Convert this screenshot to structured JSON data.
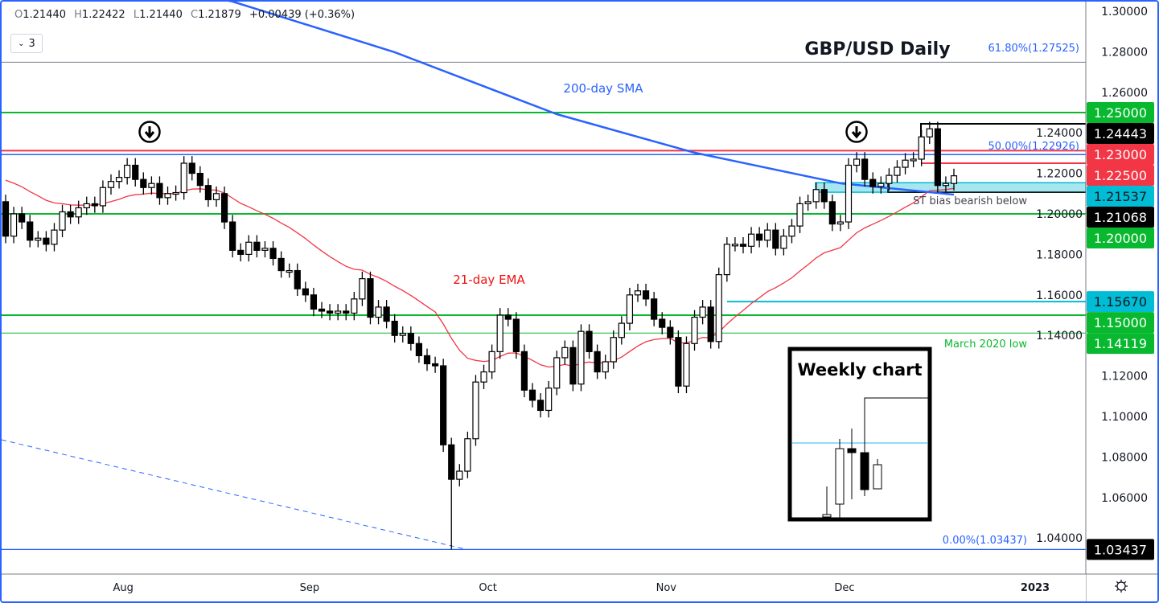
{
  "legend": {
    "open_key": "O",
    "open": "1.21440",
    "high_key": "H",
    "high": "1.22422",
    "low_key": "L",
    "low": "1.21440",
    "close_key": "C",
    "close": "1.21879",
    "change": "+0.00439 (+0.36%)"
  },
  "indicators_toggle": {
    "count": "3"
  },
  "chart_data": {
    "type": "candlestick",
    "title": "GBP/USD Daily",
    "symbol": "GBP/USD",
    "interval": "Daily",
    "ylim": [
      1.03,
      1.305
    ],
    "y_ticks": [
      "1.30000",
      "1.28000",
      "1.26000",
      "1.24000",
      "1.22000",
      "1.20000",
      "1.18000",
      "1.16000",
      "1.14000",
      "1.12000",
      "1.10000",
      "1.08000",
      "1.06000",
      "1.04000"
    ],
    "x_ticks": [
      "Aug",
      "Sep",
      "Oct",
      "Nov",
      "Dec",
      "2023"
    ],
    "x_tick_bars": [
      15,
      38,
      60,
      82,
      104
    ],
    "closes": [
      1.189,
      1.2,
      1.196,
      1.187,
      1.188,
      1.185,
      1.192,
      1.201,
      1.1985,
      1.203,
      1.205,
      1.204,
      1.213,
      1.216,
      1.218,
      1.224,
      1.217,
      1.213,
      1.215,
      1.208,
      1.21,
      1.2105,
      1.225,
      1.22,
      1.214,
      1.207,
      1.21,
      1.196,
      1.182,
      1.18,
      1.186,
      1.182,
      1.183,
      1.178,
      1.172,
      1.172,
      1.163,
      1.16,
      1.153,
      1.152,
      1.151,
      1.152,
      1.151,
      1.158,
      1.168,
      1.149,
      1.154,
      1.147,
      1.14,
      1.141,
      1.136,
      1.13,
      1.126,
      1.125,
      1.086,
      1.069,
      1.073,
      1.089,
      1.117,
      1.122,
      1.132,
      1.15,
      1.148,
      1.132,
      1.113,
      1.108,
      1.103,
      1.114,
      1.129,
      1.134,
      1.116,
      1.142,
      1.132,
      1.122,
      1.127,
      1.139,
      1.146,
      1.16,
      1.162,
      1.158,
      1.148,
      1.144,
      1.139,
      1.115,
      1.136,
      1.149,
      1.154,
      1.137,
      1.17,
      1.185,
      1.185,
      1.184,
      1.19,
      1.187,
      1.192,
      1.183,
      1.189,
      1.194,
      1.205,
      1.206,
      1.212,
      1.206,
      1.195,
      1.196,
      1.224,
      1.227,
      1.217,
      1.2135,
      1.215,
      1.219,
      1.223,
      1.2265,
      1.227,
      1.238,
      1.242,
      1.214,
      1.215,
      1.21879
    ],
    "ema21_label": "21-day EMA",
    "sma200_label": "200-day SMA",
    "sma200_points": [
      [
        28,
        1.3048
      ],
      [
        48,
        1.2798
      ],
      [
        68,
        1.2492
      ],
      [
        85,
        1.2302
      ],
      [
        103,
        1.2151
      ],
      [
        117,
        1.2095
      ]
    ],
    "levels": [
      {
        "price": 1.25,
        "label": "1.25000",
        "color": "#08b92f",
        "text_color": "#ffffff"
      },
      {
        "price": 1.24443,
        "label": "1.24443",
        "color": "#000000",
        "text_color": "#ffffff"
      },
      {
        "price": 1.23,
        "label": "1.23000",
        "color": "#f23645",
        "text_color": "#ffffff"
      },
      {
        "price": 1.225,
        "label": "1.22500",
        "color": "#f23645",
        "text_color": "#ffffff"
      },
      {
        "price": 1.21537,
        "label": "1.21537",
        "color": "#00bcd4",
        "text_color": "#131722"
      },
      {
        "price": 1.21068,
        "label": "1.21068",
        "color": "#000000",
        "text_color": "#ffffff"
      },
      {
        "price": 1.2,
        "label": "1.20000",
        "color": "#08b92f",
        "text_color": "#ffffff"
      },
      {
        "price": 1.1567,
        "label": "1.15670",
        "color": "#00bcd4",
        "text_color": "#131722"
      },
      {
        "price": 1.15,
        "label": "1.15000",
        "color": "#08b92f",
        "text_color": "#ffffff"
      },
      {
        "price": 1.14119,
        "label": "1.14119",
        "color": "#08b92f",
        "text_color": "#ffffff"
      },
      {
        "price": 1.03437,
        "label": "1.03437",
        "color": "#000000",
        "text_color": "#ffffff"
      }
    ],
    "fib": [
      {
        "price": 1.27525,
        "label": "61.80%(1.27525)"
      },
      {
        "price": 1.22926,
        "label": "50.00%(1.22926)"
      },
      {
        "price": 1.03437,
        "label": "0.00%(1.03437)"
      }
    ],
    "annotations": {
      "st_bias": "ST bias bearish below",
      "march_low": "March 2020 low",
      "weekly": "Weekly chart"
    },
    "colors": {
      "sma": "#2962ff",
      "ema": "#f23645",
      "green": "#08b92f",
      "red": "#f23645",
      "cyan": "#00bcd4",
      "fib": "#2962ff"
    }
  }
}
